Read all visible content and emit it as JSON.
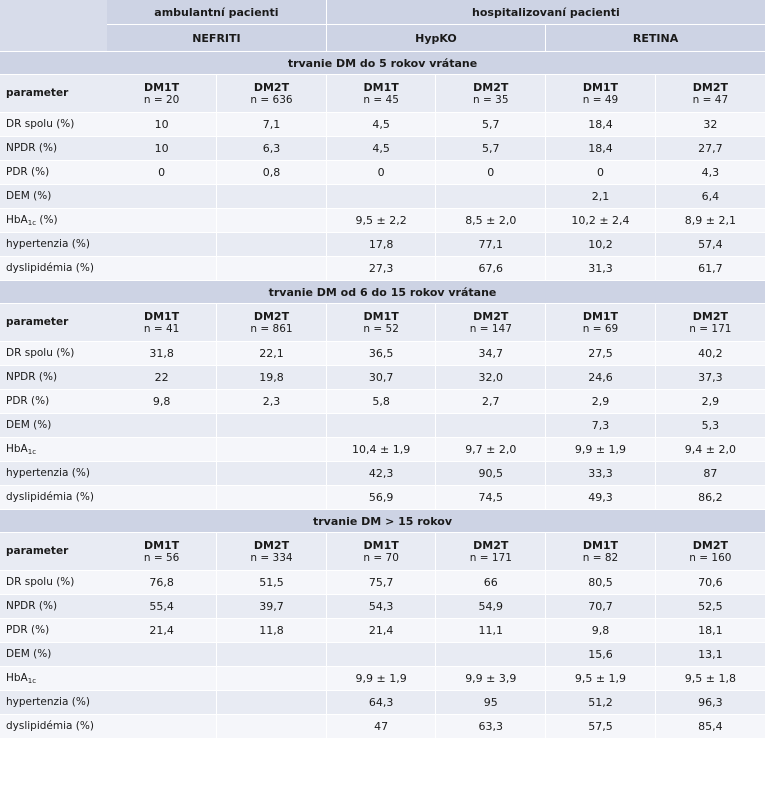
{
  "header": {
    "ambulant": "ambulantní pacienti",
    "hospital": "hospitalizovaní pacienti",
    "nefriti": "NEFRITI",
    "hypko": "HypKO",
    "retina": "RETINA"
  },
  "sections": [
    {
      "title": "trvanie DM do 5 rokov vrátane",
      "param_label": "parameter",
      "groups": [
        {
          "name": "DM1T",
          "n": "n = 20"
        },
        {
          "name": "DM2T",
          "n": "n = 636"
        },
        {
          "name": "DM1T",
          "n": "n = 45"
        },
        {
          "name": "DM2T",
          "n": "n = 35"
        },
        {
          "name": "DM1T",
          "n": "n = 49"
        },
        {
          "name": "DM2T",
          "n": "n = 47"
        }
      ],
      "rows": [
        {
          "label": "DR spolu (%)",
          "values": [
            "10",
            "7,1",
            "4,5",
            "5,7",
            "18,4",
            "32"
          ]
        },
        {
          "label": "NPDR (%)",
          "values": [
            "10",
            "6,3",
            "4,5",
            "5,7",
            "18,4",
            "27,7"
          ]
        },
        {
          "label": "PDR (%)",
          "values": [
            "0",
            "0,8",
            "0",
            "0",
            "0",
            "4,3"
          ]
        },
        {
          "label": "DEM (%)",
          "values": [
            "",
            "",
            "",
            "",
            "2,1",
            "6,4"
          ]
        },
        {
          "label": "HbA",
          "sub": "1c",
          "label_suffix": " (%)",
          "values": [
            "",
            "",
            "9,5 ± 2,2",
            "8,5 ± 2,0",
            "10,2 ± 2,4",
            "8,9 ± 2,1"
          ]
        },
        {
          "label": "hypertenzia (%)",
          "values": [
            "",
            "",
            "17,8",
            "77,1",
            "10,2",
            "57,4"
          ]
        },
        {
          "label": "dyslipidémia (%)",
          "values": [
            "",
            "",
            "27,3",
            "67,6",
            "31,3",
            "61,7"
          ]
        }
      ]
    },
    {
      "title": "trvanie DM od 6 do 15 rokov vrátane",
      "param_label": "parameter",
      "groups": [
        {
          "name": "DM1T",
          "n": "n = 41"
        },
        {
          "name": "DM2T",
          "n": "n = 861"
        },
        {
          "name": "DM1T",
          "n": "n = 52"
        },
        {
          "name": "DM2T",
          "n": "n = 147"
        },
        {
          "name": "DM1T",
          "n": "n = 69"
        },
        {
          "name": "DM2T",
          "n": "n = 171"
        }
      ],
      "rows": [
        {
          "label": "DR spolu (%)",
          "values": [
            "31,8",
            "22,1",
            "36,5",
            "34,7",
            "27,5",
            "40,2"
          ]
        },
        {
          "label": "NPDR (%)",
          "values": [
            "22",
            "19,8",
            "30,7",
            "32,0",
            "24,6",
            "37,3"
          ]
        },
        {
          "label": "PDR (%)",
          "values": [
            "9,8",
            "2,3",
            "5,8",
            "2,7",
            "2,9",
            "2,9"
          ]
        },
        {
          "label": "DEM (%)",
          "values": [
            "",
            "",
            "",
            "",
            "7,3",
            "5,3"
          ]
        },
        {
          "label": "HbA",
          "sub": "1c",
          "label_suffix": "",
          "values": [
            "",
            "",
            "10,4 ± 1,9",
            "9,7 ± 2,0",
            "9,9 ± 1,9",
            "9,4 ± 2,0"
          ]
        },
        {
          "label": "hypertenzia (%)",
          "values": [
            "",
            "",
            "42,3",
            "90,5",
            "33,3",
            "87"
          ]
        },
        {
          "label": "dyslipidémia (%)",
          "values": [
            "",
            "",
            "56,9",
            "74,5",
            "49,3",
            "86,2"
          ]
        }
      ]
    },
    {
      "title": "trvanie DM > 15 rokov",
      "param_label": "parameter",
      "groups": [
        {
          "name": "DM1T",
          "n": "n = 56"
        },
        {
          "name": "DM2T",
          "n": "n = 334"
        },
        {
          "name": "DM1T",
          "n": "n = 70"
        },
        {
          "name": "DM2T",
          "n": "n = 171"
        },
        {
          "name": "DM1T",
          "n": "n = 82"
        },
        {
          "name": "DM2T",
          "n": "n = 160"
        }
      ],
      "rows": [
        {
          "label": "DR spolu (%)",
          "values": [
            "76,8",
            "51,5",
            "75,7",
            "66",
            "80,5",
            "70,6"
          ]
        },
        {
          "label": "NPDR (%)",
          "values": [
            "55,4",
            "39,7",
            "54,3",
            "54,9",
            "70,7",
            "52,5"
          ]
        },
        {
          "label": "PDR (%)",
          "values": [
            "21,4",
            "11,8",
            "21,4",
            "11,1",
            "9,8",
            "18,1"
          ]
        },
        {
          "label": "DEM (%)",
          "values": [
            "",
            "",
            "",
            "",
            "15,6",
            "13,1"
          ]
        },
        {
          "label": "HbA",
          "sub": "1c",
          "label_suffix": "",
          "values": [
            "",
            "",
            "9,9 ± 1,9",
            "9,9 ± 3,9",
            "9,5 ± 1,9",
            "9,5 ± 1,8"
          ]
        },
        {
          "label": "hypertenzia (%)",
          "values": [
            "",
            "",
            "64,3",
            "95",
            "51,2",
            "96,3"
          ]
        },
        {
          "label": "dyslipidémia (%)",
          "values": [
            "",
            "",
            "47",
            "63,3",
            "57,5",
            "85,4"
          ]
        }
      ]
    }
  ]
}
